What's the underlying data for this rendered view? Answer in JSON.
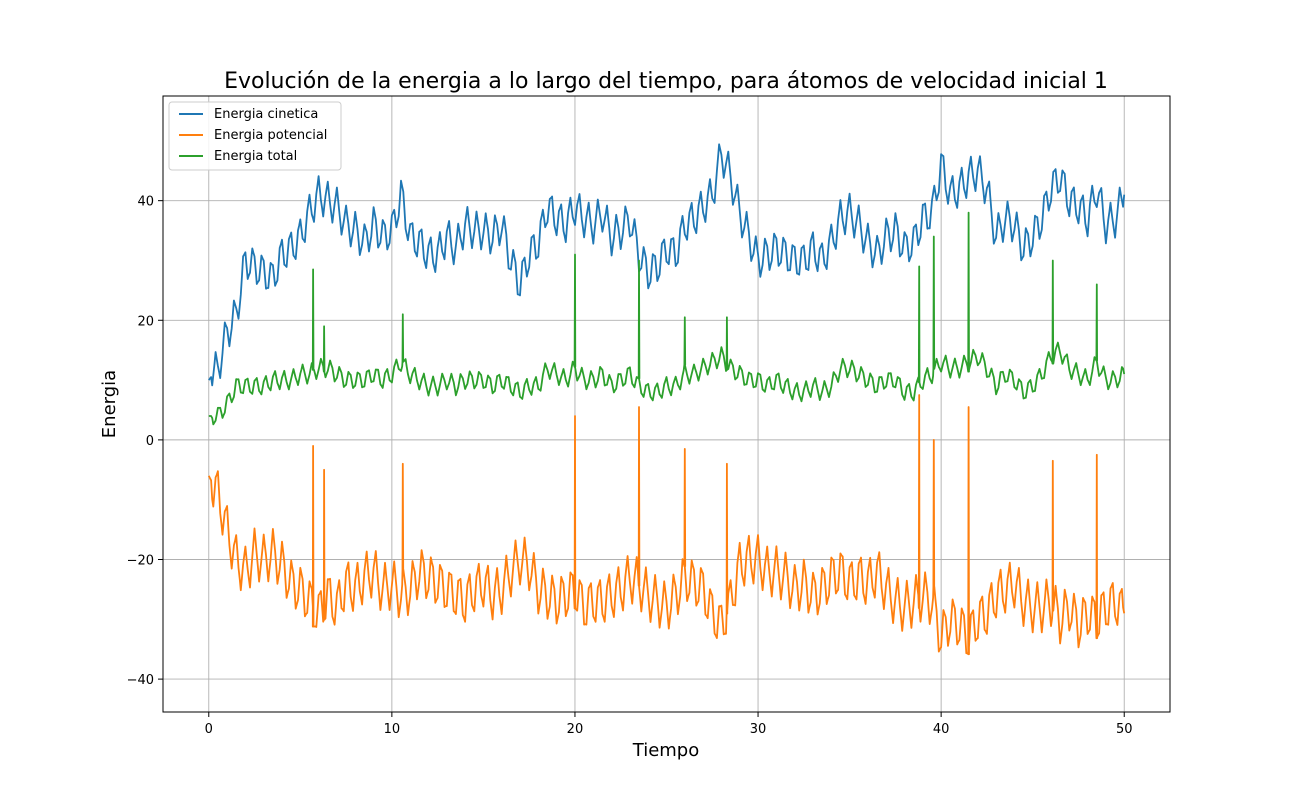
{
  "chart_data": {
    "type": "line",
    "title": "Evolución de la energia a lo largo del tiempo, para átomos de velocidad inicial 1",
    "xlabel": "Tiempo",
    "ylabel": "Energia",
    "xlim": [
      -2.5,
      52.5
    ],
    "ylim": [
      -45.5,
      57.5
    ],
    "xticks": [
      0,
      10,
      20,
      30,
      40,
      50
    ],
    "yticks": [
      -40,
      -20,
      0,
      20,
      40
    ],
    "xtick_labels": [
      "0",
      "10",
      "20",
      "30",
      "40",
      "50"
    ],
    "ytick_labels": [
      "−40",
      "−20",
      "0",
      "20",
      "40"
    ],
    "grid": true,
    "legend_position": "upper-left",
    "series": [
      {
        "name": "Energia cinetica",
        "color": "#1f77b4",
        "x": [
          0,
          0.5,
          1,
          1.5,
          2,
          2.5,
          3,
          3.5,
          4,
          4.5,
          5,
          5.5,
          6,
          6.5,
          7,
          7.5,
          8,
          8.5,
          9,
          9.5,
          10,
          10.5,
          11,
          11.5,
          12,
          12.5,
          13,
          13.5,
          14,
          14.5,
          15,
          15.5,
          16,
          16.5,
          17,
          17.5,
          18,
          18.5,
          19,
          19.5,
          20,
          20.5,
          21,
          21.5,
          22,
          22.5,
          23,
          23.5,
          24,
          24.5,
          25,
          25.5,
          26,
          26.5,
          27,
          27.5,
          28,
          28.5,
          29,
          29.5,
          30,
          30.5,
          31,
          31.5,
          32,
          32.5,
          33,
          33.5,
          34,
          34.5,
          35,
          35.5,
          36,
          36.5,
          37,
          37.5,
          38,
          38.5,
          39,
          39.5,
          40,
          40.5,
          41,
          41.5,
          42,
          42.5,
          43,
          43.5,
          44,
          44.5,
          45,
          45.5,
          46,
          46.5,
          47,
          47.5,
          48,
          48.5,
          49,
          49.5,
          50
        ],
        "y": [
          10,
          12,
          18,
          21,
          30,
          29,
          28,
          27,
          31,
          32,
          34,
          38,
          41,
          40,
          39,
          36,
          35,
          33,
          36,
          34,
          35,
          41,
          34,
          33,
          31,
          31,
          34,
          32,
          36,
          35,
          35,
          34,
          36,
          30,
          26,
          31,
          33,
          39,
          37,
          36,
          39,
          37,
          36,
          38,
          34,
          35,
          37,
          31,
          28,
          29,
          32,
          31,
          36,
          37,
          39,
          41,
          48,
          44,
          38,
          34,
          30,
          31,
          32,
          31,
          30,
          30,
          32,
          30,
          33,
          37,
          38,
          36,
          33,
          31,
          34,
          35,
          32,
          33,
          37,
          38,
          46,
          41,
          42,
          44,
          45,
          42,
          34,
          37,
          36,
          32,
          34,
          37,
          42,
          44,
          40,
          39,
          37,
          42,
          36,
          37,
          41
        ]
      },
      {
        "name": "Energia potencial",
        "color": "#ff7f0e",
        "x": [
          0,
          0.5,
          1,
          1.5,
          2,
          2.5,
          3,
          3.5,
          4,
          4.5,
          5,
          5.5,
          6,
          6.5,
          7,
          7.5,
          8,
          8.5,
          9,
          9.5,
          10,
          10.5,
          11,
          11.5,
          12,
          12.5,
          13,
          13.5,
          14,
          14.5,
          15,
          15.5,
          16,
          16.5,
          17,
          17.5,
          18,
          18.5,
          19,
          19.5,
          20,
          20.5,
          21,
          21.5,
          22,
          22.5,
          23,
          23.5,
          24,
          24.5,
          25,
          25.5,
          26,
          26.5,
          27,
          27.5,
          28,
          28.5,
          29,
          29.5,
          30,
          30.5,
          31,
          31.5,
          32,
          32.5,
          33,
          33.5,
          34,
          34.5,
          35,
          35.5,
          36,
          36.5,
          37,
          37.5,
          38,
          38.5,
          39,
          39.5,
          40,
          40.5,
          41,
          41.5,
          42,
          42.5,
          43,
          43.5,
          44,
          44.5,
          45,
          45.5,
          46,
          46.5,
          47,
          47.5,
          48,
          48.5,
          49,
          49.5,
          50
        ],
        "y": [
          -6,
          -9,
          -15,
          -20,
          -22,
          -19,
          -20,
          -19,
          -21,
          -24,
          -25,
          -27,
          -29,
          -26,
          -28,
          -24,
          -25,
          -23,
          -22,
          -25,
          -24,
          -26,
          -25,
          -22,
          -23,
          -24,
          -25,
          -26,
          -27,
          -25,
          -24,
          -26,
          -25,
          -22,
          -20,
          -21,
          -25,
          -26,
          -27,
          -26,
          -25,
          -28,
          -27,
          -27,
          -26,
          -25,
          -23,
          -24,
          -26,
          -27,
          -28,
          -26,
          -23,
          -24,
          -25,
          -29,
          -31,
          -27,
          -21,
          -20,
          -20,
          -22,
          -22,
          -23,
          -25,
          -24,
          -26,
          -25,
          -23,
          -22,
          -24,
          -23,
          -24,
          -22,
          -25,
          -27,
          -28,
          -27,
          -26,
          -27,
          -33,
          -30,
          -31,
          -33,
          -30,
          -29,
          -26,
          -25,
          -24,
          -27,
          -28,
          -28,
          -27,
          -30,
          -28,
          -31,
          -29,
          -30,
          -28,
          -27,
          -29
        ]
      },
      {
        "name": "Energia total",
        "color": "#2ca02c",
        "x": [
          0,
          0.5,
          1,
          1.5,
          2,
          2.5,
          3,
          3.5,
          4,
          4.5,
          5,
          5.5,
          6,
          6.5,
          7,
          7.5,
          8,
          8.5,
          9,
          9.5,
          10,
          10.5,
          11,
          11.5,
          12,
          12.5,
          13,
          13.5,
          14,
          14.5,
          15,
          15.5,
          16,
          16.5,
          17,
          17.5,
          18,
          18.5,
          19,
          19.5,
          20,
          20.5,
          21,
          21.5,
          22,
          22.5,
          23,
          23.5,
          24,
          24.5,
          25,
          25.5,
          26,
          26.5,
          27,
          27.5,
          28,
          28.5,
          29,
          29.5,
          30,
          30.5,
          31,
          31.5,
          32,
          32.5,
          33,
          33.5,
          34,
          34.5,
          35,
          35.5,
          36,
          36.5,
          37,
          37.5,
          38,
          38.5,
          39,
          39.5,
          40,
          40.5,
          41,
          41.5,
          42,
          42.5,
          43,
          43.5,
          44,
          44.5,
          45,
          45.5,
          46,
          46.5,
          47,
          47.5,
          48,
          48.5,
          49,
          49.5,
          50
        ],
        "y": [
          4,
          4,
          6,
          9,
          9,
          9,
          9,
          10,
          10,
          10,
          11,
          11,
          12,
          12,
          11,
          10,
          10,
          10,
          11,
          10,
          11,
          13,
          11,
          10,
          9,
          9,
          10,
          9,
          10,
          10,
          10,
          9,
          10,
          9,
          8,
          9,
          9,
          12,
          11,
          10,
          12,
          10,
          10,
          11,
          9,
          10,
          11,
          9,
          8,
          8,
          9,
          9,
          11,
          11,
          12,
          13,
          14,
          12,
          11,
          10,
          10,
          9,
          10,
          9,
          8,
          8,
          9,
          8,
          9,
          12,
          12,
          11,
          10,
          9,
          10,
          10,
          8,
          8,
          10,
          11,
          13,
          12,
          12,
          13,
          14,
          12,
          9,
          11,
          10,
          8,
          9,
          11,
          14,
          15,
          12,
          11,
          10,
          13,
          10,
          10,
          11
        ]
      }
    ],
    "spikes": [
      {
        "series": "Energia total",
        "x": [
          5.7,
          6.3,
          10.6,
          20,
          23.5,
          26,
          28.3,
          38.8,
          39.6,
          41.5,
          46.1,
          48.5
        ],
        "y": [
          28.5,
          19,
          21,
          31,
          30,
          20.5,
          20.5,
          29,
          34,
          38,
          30,
          26
        ]
      },
      {
        "series": "Energia potencial",
        "x": [
          5.7,
          6.3,
          10.6,
          20,
          23.5,
          26,
          28.3,
          38.8,
          39.6,
          41.5,
          46.1,
          48.5
        ],
        "y": [
          -1,
          -5,
          -4,
          4,
          5.5,
          -1.5,
          -4,
          7.5,
          0,
          5.5,
          -3.5,
          -2.5
        ]
      }
    ]
  }
}
